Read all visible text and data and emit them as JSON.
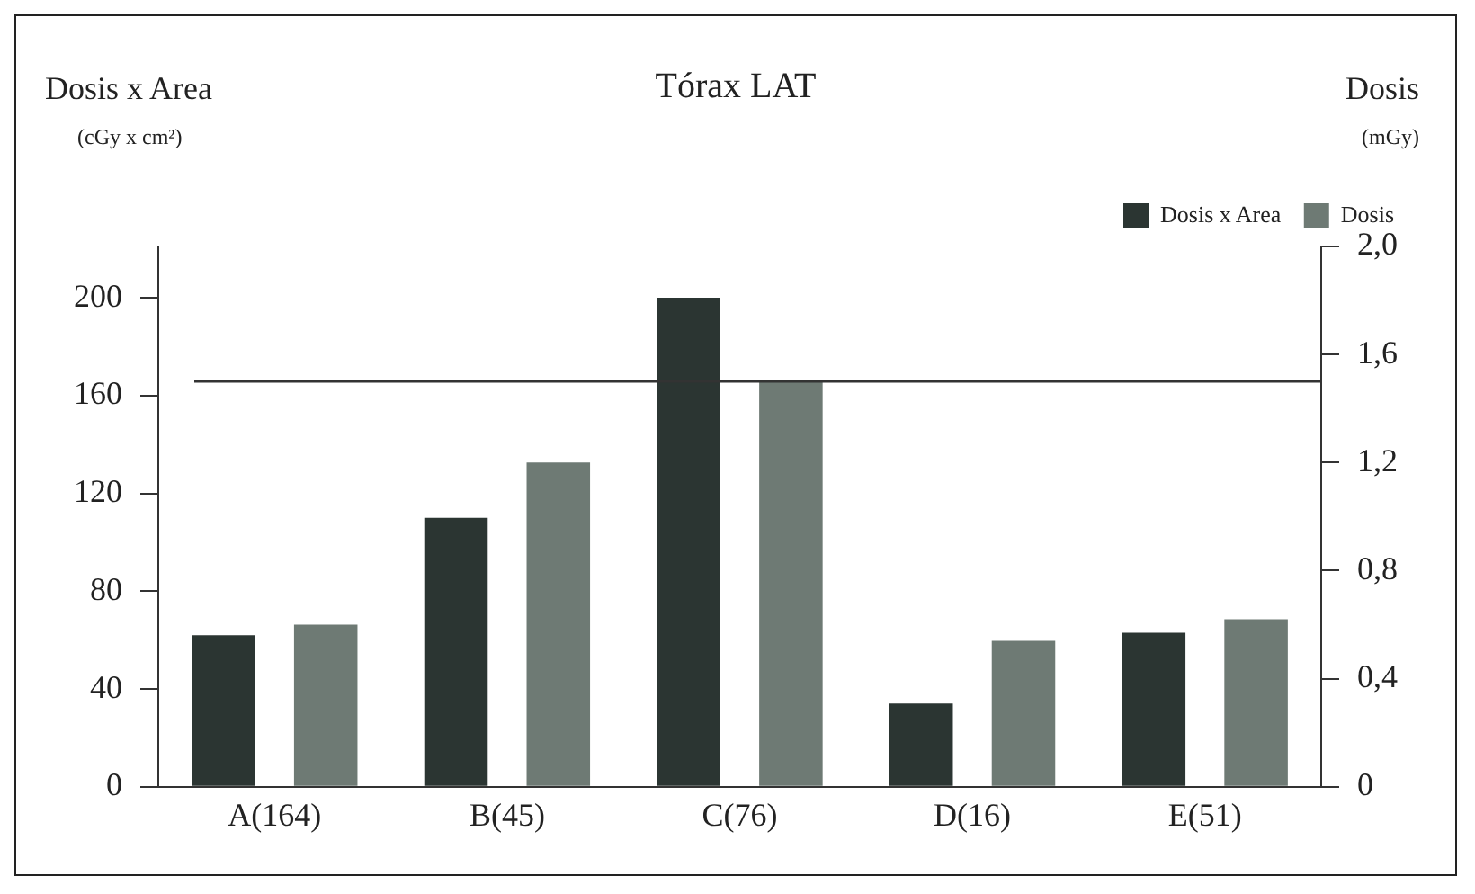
{
  "chart_data": {
    "type": "bar",
    "title": "Tórax LAT",
    "ylabel": "Dosis x Area (cGy x cm²)",
    "y2label": "Dosis (mGy)",
    "categories": [
      "A(164)",
      "B(45)",
      "C(76)",
      "D(16)",
      "E(51)"
    ],
    "series": [
      {
        "name": "Dosis x Area",
        "color": "#2b3532",
        "values": [
          62,
          110,
          200,
          34,
          63
        ]
      },
      {
        "name": "Dosis",
        "color": "#6e7a74",
        "axis": "y2",
        "values": [
          0.6,
          1.2,
          1.5,
          0.54,
          0.62
        ]
      }
    ],
    "ylim": [
      0,
      221
    ],
    "yticks": [
      0,
      40,
      80,
      120,
      160,
      200
    ],
    "y2lim": [
      0,
      2
    ],
    "y2ticks": [
      {
        "value": 0,
        "label": "0"
      },
      {
        "value": 0.4,
        "label": "0,4"
      },
      {
        "value": 0.8,
        "label": "0,8"
      },
      {
        "value": 1.2,
        "label": "1,2"
      },
      {
        "value": 1.6,
        "label": "1,6"
      },
      {
        "value": 2,
        "label": "2,0"
      }
    ],
    "ref_lines": [
      {
        "axis": "y2",
        "value": 1.5,
        "color": "#333333"
      }
    ],
    "legend": "top right",
    "grid": false
  }
}
